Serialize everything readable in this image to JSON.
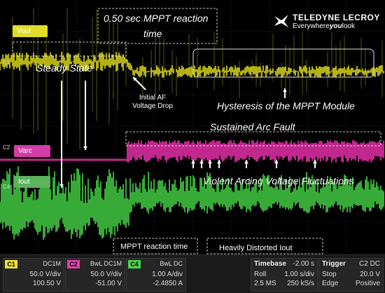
{
  "logo": {
    "brand": "TELEDYNE LECROY",
    "tagline_prefix": "Everywhere",
    "tagline_bold": "you",
    "tagline_suffix": "look"
  },
  "channels": {
    "vout_tag": "Vout",
    "varc_tag": "Varc",
    "iout_tag": "Iout",
    "c1_marker": "C1",
    "c2_marker": "C2",
    "c4_marker": "C4"
  },
  "annotations": {
    "mppt_reaction_title_line1": "0.50 sec MPPT reaction",
    "mppt_reaction_title_line2": "time",
    "steady_state": "Steady State",
    "initial_af_line1": "Initial AF",
    "initial_af_line2": "Voltage Drop",
    "hysteresis": "Hysteresis of the MPPT Module",
    "sustained_arc": "Sustained Arc Fault",
    "violent_arcing": "Violent Arcing Voltage Fluctuations",
    "mppt_reaction_time": "MPPT reaction time",
    "heavily_distorted": "Heavily Distorted Iout"
  },
  "status": {
    "c1": {
      "badge": "C1",
      "coupling": "DC1M",
      "vdiv": "50.0 V/div",
      "offset": "100.50 V",
      "color": "#f0e030"
    },
    "c2": {
      "badge": "C2",
      "coupling": "BwL DC1M",
      "vdiv": "50.0 V/div",
      "offset": "-51.00 V",
      "color": "#e040b0"
    },
    "c4": {
      "badge": "C4",
      "coupling": "BwL DC",
      "vdiv": "1.00 A/div",
      "offset": "-2.4850 A",
      "color": "#50d050"
    },
    "timebase": {
      "label": "Timebase",
      "delay": "-2.00 s",
      "mode": "Roll",
      "sdiv": "1.00 s/div",
      "samples": "2.5 MS",
      "rate": "250 kS/s"
    },
    "trigger": {
      "label": "Trigger",
      "source": "C2 DC",
      "state": "Stop",
      "level": "20.0 V",
      "type": "Edge",
      "slope": "Positive"
    }
  },
  "colors": {
    "vout": "#c8c41a",
    "varc": "#c0288e",
    "iout": "#3bb33b",
    "grid": "#4a4a4a"
  }
}
